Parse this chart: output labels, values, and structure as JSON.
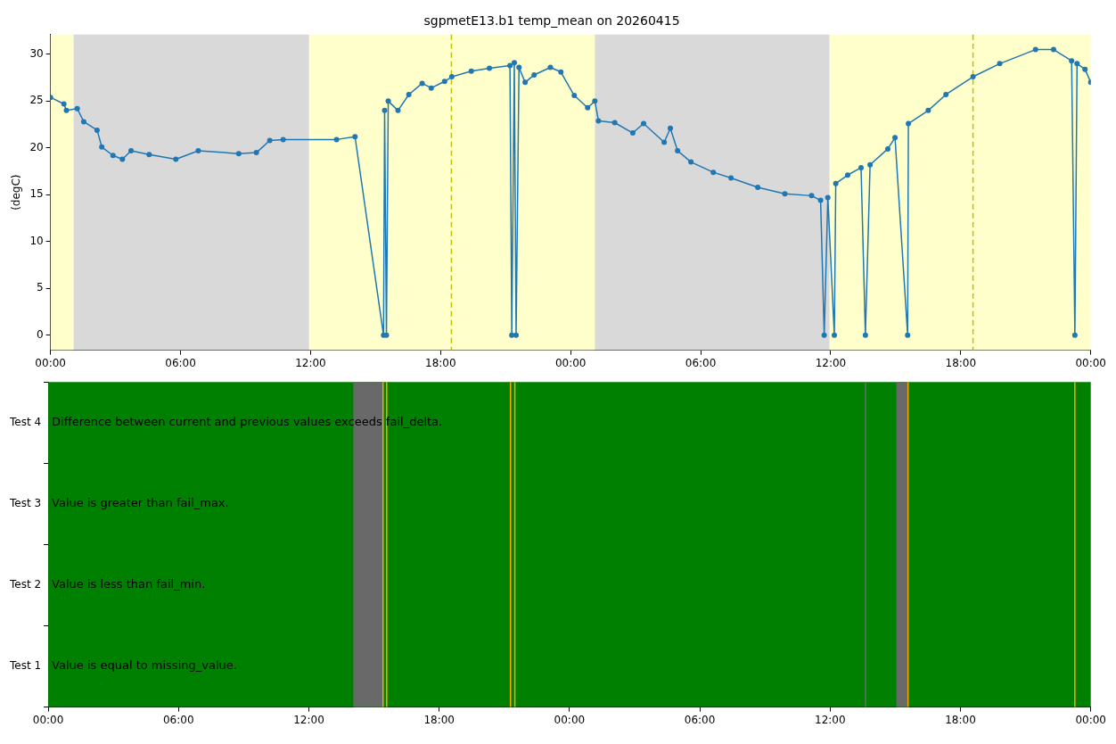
{
  "chart_data": [
    {
      "type": "line",
      "title": "sgpmetE13.b1 temp_mean on 20260415",
      "ylabel": "(degC)",
      "marker": "circle",
      "grid": false,
      "x": [
        "2026-04-15T00:00",
        "2026-04-15T00:37",
        "2026-04-15T00:44",
        "2026-04-15T01:14",
        "2026-04-15T01:32",
        "2026-04-15T02:09",
        "2026-04-15T02:22",
        "2026-04-15T02:53",
        "2026-04-15T03:19",
        "2026-04-15T03:43",
        "2026-04-15T04:33",
        "2026-04-15T05:47",
        "2026-04-15T06:49",
        "2026-04-15T08:41",
        "2026-04-15T09:30",
        "2026-04-15T10:07",
        "2026-04-15T10:44",
        "2026-04-15T13:12",
        "2026-04-15T14:03",
        "2026-04-15T15:22",
        "2026-04-15T15:25",
        "2026-04-15T15:30",
        "2026-04-15T15:35",
        "2026-04-15T16:02",
        "2026-04-15T16:32",
        "2026-04-15T17:09",
        "2026-04-15T17:34",
        "2026-04-15T18:11",
        "2026-04-15T18:31",
        "2026-04-15T19:25",
        "2026-04-15T20:15",
        "2026-04-15T21:12",
        "2026-04-15T21:17",
        "2026-04-15T21:24",
        "2026-04-15T21:29",
        "2026-04-15T21:37",
        "2026-04-15T21:54",
        "2026-04-15T22:19",
        "2026-04-15T23:04",
        "2026-04-15T23:33",
        "2026-04-16T00:10",
        "2026-04-16T00:47",
        "2026-04-16T01:07",
        "2026-04-16T01:17",
        "2026-04-16T02:02",
        "2026-04-16T02:52",
        "2026-04-16T03:22",
        "2026-04-16T04:19",
        "2026-04-16T04:36",
        "2026-04-16T04:56",
        "2026-04-16T05:33",
        "2026-04-16T06:35",
        "2026-04-16T07:24",
        "2026-04-16T08:38",
        "2026-04-16T09:53",
        "2026-04-16T11:07",
        "2026-04-16T11:32",
        "2026-04-16T11:42",
        "2026-04-16T11:52",
        "2026-04-16T12:10",
        "2026-04-16T12:14",
        "2026-04-16T12:47",
        "2026-04-16T13:24",
        "2026-04-16T13:36",
        "2026-04-16T13:49",
        "2026-04-16T14:38",
        "2026-04-16T14:58",
        "2026-04-16T15:33",
        "2026-04-16T15:35",
        "2026-04-16T16:30",
        "2026-04-16T17:19",
        "2026-04-16T18:34",
        "2026-04-16T19:48",
        "2026-04-16T21:27",
        "2026-04-16T22:17",
        "2026-04-16T23:07",
        "2026-04-16T23:16",
        "2026-04-16T23:22",
        "2026-04-16T23:44",
        "2026-04-17T00:00"
      ],
      "series": [
        {
          "color": "#1f77b4",
          "values": [
            25.4,
            24.7,
            24.0,
            24.2,
            22.8,
            21.9,
            20.1,
            19.2,
            18.8,
            19.7,
            19.3,
            18.8,
            19.7,
            19.4,
            19.5,
            20.8,
            20.9,
            20.9,
            21.2,
            0,
            24.0,
            0,
            25.0,
            24.0,
            25.7,
            26.9,
            26.4,
            27.1,
            27.6,
            28.2,
            28.5,
            28.8,
            0,
            29.1,
            0,
            28.6,
            27.0,
            27.8,
            28.6,
            28.1,
            25.6,
            24.3,
            25.0,
            22.9,
            22.7,
            21.6,
            22.6,
            20.6,
            22.1,
            19.7,
            18.5,
            17.4,
            16.8,
            15.8,
            15.1,
            14.9,
            14.4,
            0,
            14.7,
            0,
            16.2,
            17.1,
            17.9,
            0,
            18.2,
            19.9,
            21.1,
            0,
            22.6,
            24.0,
            25.7,
            27.6,
            29.0,
            30.5,
            30.5,
            29.3,
            0,
            29.0,
            28.4,
            27.0
          ]
        }
      ],
      "xlim": [
        "2026-04-15T00:00",
        "2026-04-17T00:00"
      ],
      "ylim": [
        -1.6,
        32.1
      ],
      "xticks": [
        {
          "value": "2026-04-15T00:00",
          "label": "00:00"
        },
        {
          "value": "2026-04-15T06:00",
          "label": "06:00"
        },
        {
          "value": "2026-04-15T12:00",
          "label": "12:00"
        },
        {
          "value": "2026-04-15T18:00",
          "label": "18:00"
        },
        {
          "value": "2026-04-16T00:00",
          "label": "00:00"
        },
        {
          "value": "2026-04-16T06:00",
          "label": "06:00"
        },
        {
          "value": "2026-04-16T12:00",
          "label": "12:00"
        },
        {
          "value": "2026-04-16T18:00",
          "label": "18:00"
        },
        {
          "value": "2026-04-17T00:00",
          "label": "00:00"
        }
      ],
      "yticks": [
        0,
        5,
        10,
        15,
        20,
        25,
        30
      ],
      "bands": [
        {
          "axis": "x",
          "from": "2026-04-15T00:00",
          "to": "2026-04-15T01:04",
          "color": "#ffffcc"
        },
        {
          "axis": "x",
          "from": "2026-04-15T01:04",
          "to": "2026-04-15T11:56",
          "color": "#d9d9d9"
        },
        {
          "axis": "x",
          "from": "2026-04-15T11:56",
          "to": "2026-04-16T01:07",
          "color": "#ffffcc"
        },
        {
          "axis": "x",
          "from": "2026-04-16T01:07",
          "to": "2026-04-16T11:57",
          "color": "#d9d9d9"
        },
        {
          "axis": "x",
          "from": "2026-04-16T11:57",
          "to": "2026-04-17T00:00",
          "color": "#ffffcc"
        }
      ],
      "ref_lines": [
        {
          "axis": "x",
          "value": "2026-04-15T18:30",
          "color": "#bfbf00",
          "line_style": "dashed"
        },
        {
          "axis": "x",
          "value": "2026-04-16T18:34",
          "color": "#bfbf00",
          "line_style": "dashed"
        }
      ]
    },
    {
      "type": "bar",
      "orientation": "horizontal",
      "grid": false,
      "categories": [
        "Test 4",
        "Test 3",
        "Test 2",
        "Test 1"
      ],
      "ref_lines": [
        {
          "axis": "x",
          "value": "2026-04-15T15:25",
          "color": "#ffa500"
        },
        {
          "axis": "x",
          "value": "2026-04-15T15:35",
          "color": "#ffa500"
        },
        {
          "axis": "x",
          "value": "2026-04-15T21:17",
          "color": "#ffa500"
        },
        {
          "axis": "x",
          "value": "2026-04-15T21:29",
          "color": "#ffa500"
        },
        {
          "axis": "x",
          "value": "2026-04-16T15:35",
          "color": "#ffa500"
        },
        {
          "axis": "x",
          "value": "2026-04-16T23:16",
          "color": "#ffa500"
        }
      ],
      "bands": [
        {
          "axis": "x",
          "from": "2026-04-15T00:00",
          "to": "2026-04-17T00:00",
          "color": "#008000"
        },
        {
          "axis": "x",
          "from": "2026-04-15T14:03",
          "to": "2026-04-15T15:25",
          "color": "#696969"
        },
        {
          "axis": "x",
          "from": "2026-04-16T13:36",
          "to": "2026-04-16T13:40",
          "color": "#696969"
        },
        {
          "axis": "x",
          "from": "2026-04-16T15:03",
          "to": "2026-04-16T15:33",
          "color": "#696969"
        }
      ],
      "xlim": [
        "2026-04-15T00:00",
        "2026-04-17T00:00"
      ],
      "xticks": [
        {
          "value": "2026-04-15T00:00",
          "label": "00:00"
        },
        {
          "value": "2026-04-15T06:00",
          "label": "06:00"
        },
        {
          "value": "2026-04-15T12:00",
          "label": "12:00"
        },
        {
          "value": "2026-04-15T18:00",
          "label": "18:00"
        },
        {
          "value": "2026-04-16T00:00",
          "label": "00:00"
        },
        {
          "value": "2026-04-16T06:00",
          "label": "06:00"
        },
        {
          "value": "2026-04-16T12:00",
          "label": "12:00"
        },
        {
          "value": "2026-04-16T18:00",
          "label": "18:00"
        },
        {
          "value": "2026-04-17T00:00",
          "label": "00:00"
        }
      ],
      "annotations": [
        {
          "text": "Difference between current and previous values exceeds fail_delta.",
          "x": "2026-04-15T00:00",
          "y": "Test 4"
        },
        {
          "text": "Value is greater than fail_max.",
          "x": "2026-04-15T00:00",
          "y": "Test 3"
        },
        {
          "text": "Value is less than fail_min.",
          "x": "2026-04-15T00:00",
          "y": "Test 2"
        },
        {
          "text": "Value is equal to missing_value.",
          "x": "2026-04-15T00:00",
          "y": "Test 1"
        }
      ]
    }
  ]
}
